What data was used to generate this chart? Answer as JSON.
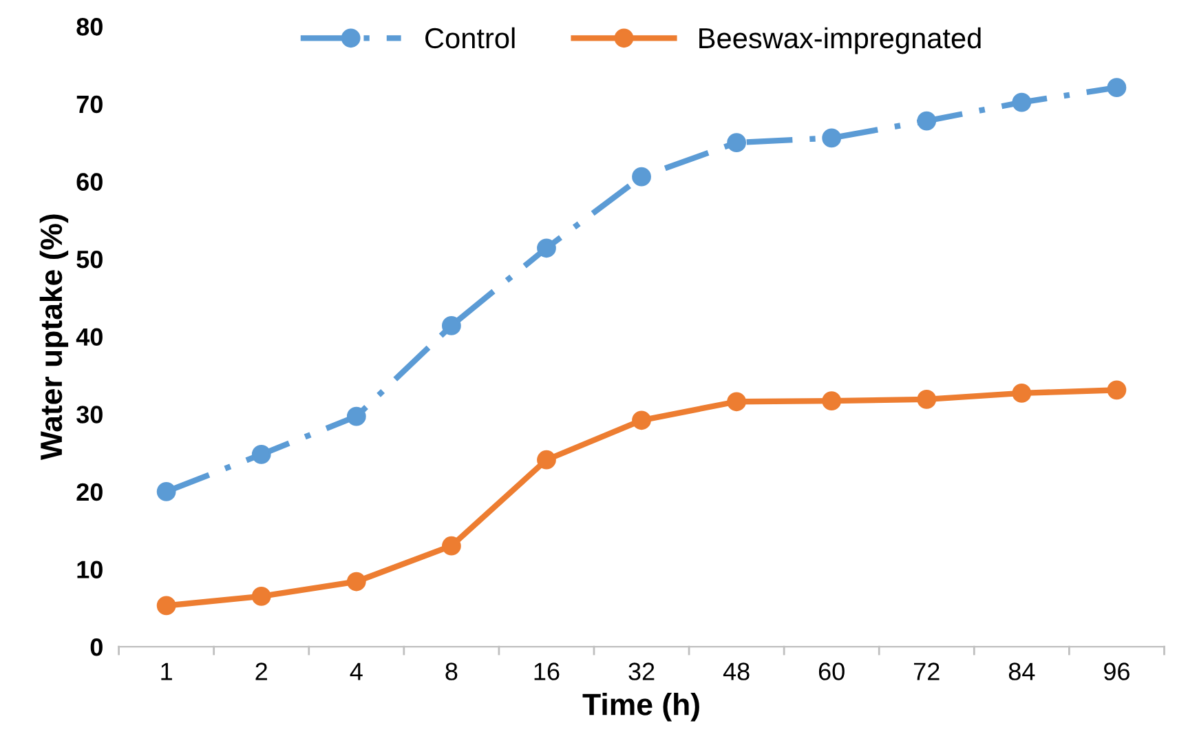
{
  "chart_data": {
    "type": "line",
    "xlabel": "Time (h)",
    "ylabel": "Water uptake (%)",
    "categories": [
      "1",
      "2",
      "4",
      "8",
      "16",
      "32",
      "48",
      "60",
      "72",
      "84",
      "96"
    ],
    "series": [
      {
        "name": "Control",
        "color": "#5b9bd5",
        "line_style": "dashed",
        "values": [
          20.0,
          24.8,
          29.7,
          41.4,
          51.4,
          60.6,
          65.0,
          65.6,
          67.8,
          70.2,
          72.1
        ]
      },
      {
        "name": "Beeswax-impregnated",
        "color": "#ed7d31",
        "line_style": "solid",
        "values": [
          5.3,
          6.5,
          8.4,
          13.0,
          24.1,
          29.2,
          31.6,
          31.7,
          31.9,
          32.7,
          33.1
        ]
      }
    ],
    "ylim": [
      0,
      80
    ],
    "yticks": [
      0,
      10,
      20,
      30,
      40,
      50,
      60,
      70,
      80
    ],
    "grid": false,
    "legend": "top",
    "marker": "circle"
  }
}
